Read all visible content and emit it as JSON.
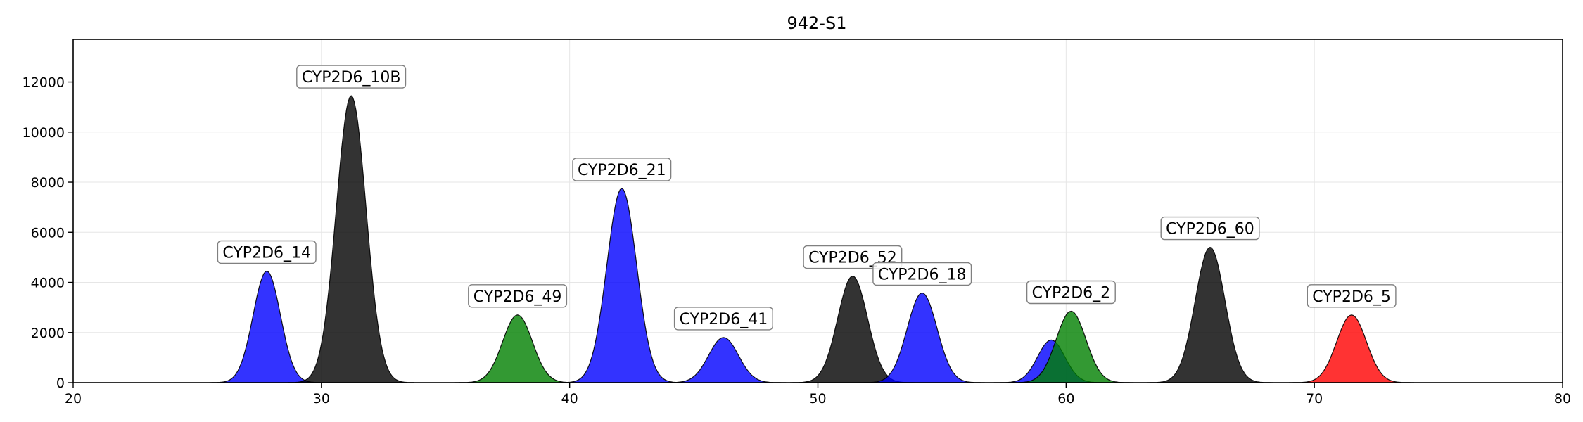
{
  "chart_data": {
    "type": "area",
    "title": "942-S1",
    "xlabel": "",
    "ylabel": "",
    "xlim": [
      20,
      80
    ],
    "ylim": [
      0,
      13700
    ],
    "xticks": [
      20,
      30,
      40,
      50,
      60,
      70,
      80
    ],
    "yticks": [
      0,
      2000,
      4000,
      6000,
      8000,
      10000,
      12000
    ],
    "grid": true,
    "legend": "none",
    "colors": {
      "blue": "#0000ff",
      "black": "#000000",
      "green": "#008000",
      "red": "#ff0000"
    },
    "peaks": [
      {
        "label": "CYP2D6_14",
        "x": 27.8,
        "y": 4450,
        "sigma": 0.55,
        "color": "blue"
      },
      {
        "label": "CYP2D6_10B",
        "x": 31.2,
        "y": 11450,
        "sigma": 0.6,
        "color": "black"
      },
      {
        "label": "CYP2D6_49",
        "x": 37.9,
        "y": 2700,
        "sigma": 0.6,
        "color": "green"
      },
      {
        "label": "CYP2D6_21",
        "x": 42.1,
        "y": 7750,
        "sigma": 0.6,
        "color": "blue"
      },
      {
        "label": "CYP2D6_41",
        "x": 46.2,
        "y": 1800,
        "sigma": 0.6,
        "color": "blue"
      },
      {
        "label": "CYP2D6_52",
        "x": 51.4,
        "y": 4250,
        "sigma": 0.6,
        "color": "black"
      },
      {
        "label": "CYP2D6_18",
        "x": 54.2,
        "y": 3580,
        "sigma": 0.6,
        "color": "blue"
      },
      {
        "label": "",
        "x": 59.4,
        "y": 1700,
        "sigma": 0.55,
        "color": "blue"
      },
      {
        "label": "CYP2D6_2",
        "x": 60.2,
        "y": 2850,
        "sigma": 0.6,
        "color": "green"
      },
      {
        "label": "CYP2D6_60",
        "x": 65.8,
        "y": 5400,
        "sigma": 0.6,
        "color": "black"
      },
      {
        "label": "CYP2D6_5",
        "x": 71.5,
        "y": 2700,
        "sigma": 0.6,
        "color": "red"
      }
    ]
  }
}
